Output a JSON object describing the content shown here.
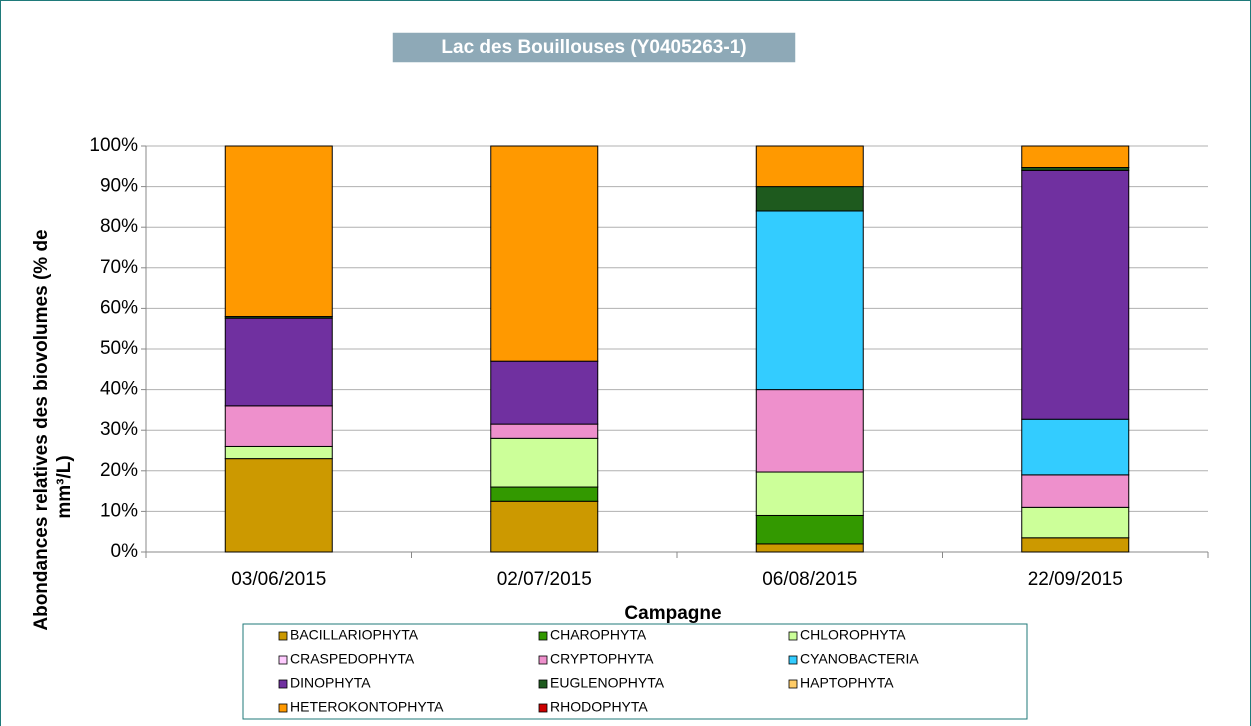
{
  "chart_data": {
    "type": "stacked_bar",
    "title": "Lac des Bouillouses (Y0405263-1)",
    "x_label": "Campagne",
    "y_label": [
      "Abondances relatives des biovolumes (% de",
      "mm³/L)"
    ],
    "categories": [
      "03/06/2015",
      "02/07/2015",
      "06/08/2015",
      "22/09/2015"
    ],
    "ylim": [
      0,
      100
    ],
    "yticks": [
      {
        "value": 0,
        "label": "0%"
      },
      {
        "value": 10,
        "label": "10%"
      },
      {
        "value": 20,
        "label": "20%"
      },
      {
        "value": 30,
        "label": "30%"
      },
      {
        "value": 40,
        "label": "40%"
      },
      {
        "value": 50,
        "label": "50%"
      },
      {
        "value": 60,
        "label": "60%"
      },
      {
        "value": 70,
        "label": "70%"
      },
      {
        "value": 80,
        "label": "80%"
      },
      {
        "value": 90,
        "label": "90%"
      },
      {
        "value": 100,
        "label": "100%"
      }
    ],
    "grid": true,
    "legend": "bottom",
    "series": [
      {
        "name": "BACILLARIOPHYTA",
        "color": "#cc9900",
        "values": [
          23,
          12.5,
          2,
          3.5
        ]
      },
      {
        "name": "CHAROPHYTA",
        "color": "#339900",
        "values": [
          0,
          3.5,
          7,
          0
        ]
      },
      {
        "name": "CHLOROPHYTA",
        "color": "#ccff99",
        "values": [
          3,
          12,
          10.7,
          7.5
        ]
      },
      {
        "name": "CRASPEDOPHYTA",
        "color": "#ffccff",
        "values": [
          0,
          0,
          0,
          0
        ]
      },
      {
        "name": "CRYPTOPHYTA",
        "color": "#ee90cc",
        "values": [
          10,
          3.5,
          20.3,
          8
        ]
      },
      {
        "name": "CYANOBACTERIA",
        "color": "#33ccff",
        "values": [
          0,
          0,
          44,
          13.7
        ]
      },
      {
        "name": "DINOPHYTA",
        "color": "#7030a0",
        "values": [
          21.6,
          15.5,
          0,
          61.3
        ]
      },
      {
        "name": "EUGLENOPHYTA",
        "color": "#1e5a1e",
        "values": [
          0.4,
          0,
          6,
          0.7
        ]
      },
      {
        "name": "HAPTOPHYTA",
        "color": "#ffcc66",
        "values": [
          0,
          0,
          0,
          0
        ]
      },
      {
        "name": "HETEROKONTOPHYTA",
        "color": "#ff9900",
        "values": [
          42,
          53,
          10,
          5.3
        ]
      },
      {
        "name": "RHODOPHYTA",
        "color": "#cc0000",
        "values": [
          0,
          0,
          0,
          0
        ]
      }
    ]
  }
}
